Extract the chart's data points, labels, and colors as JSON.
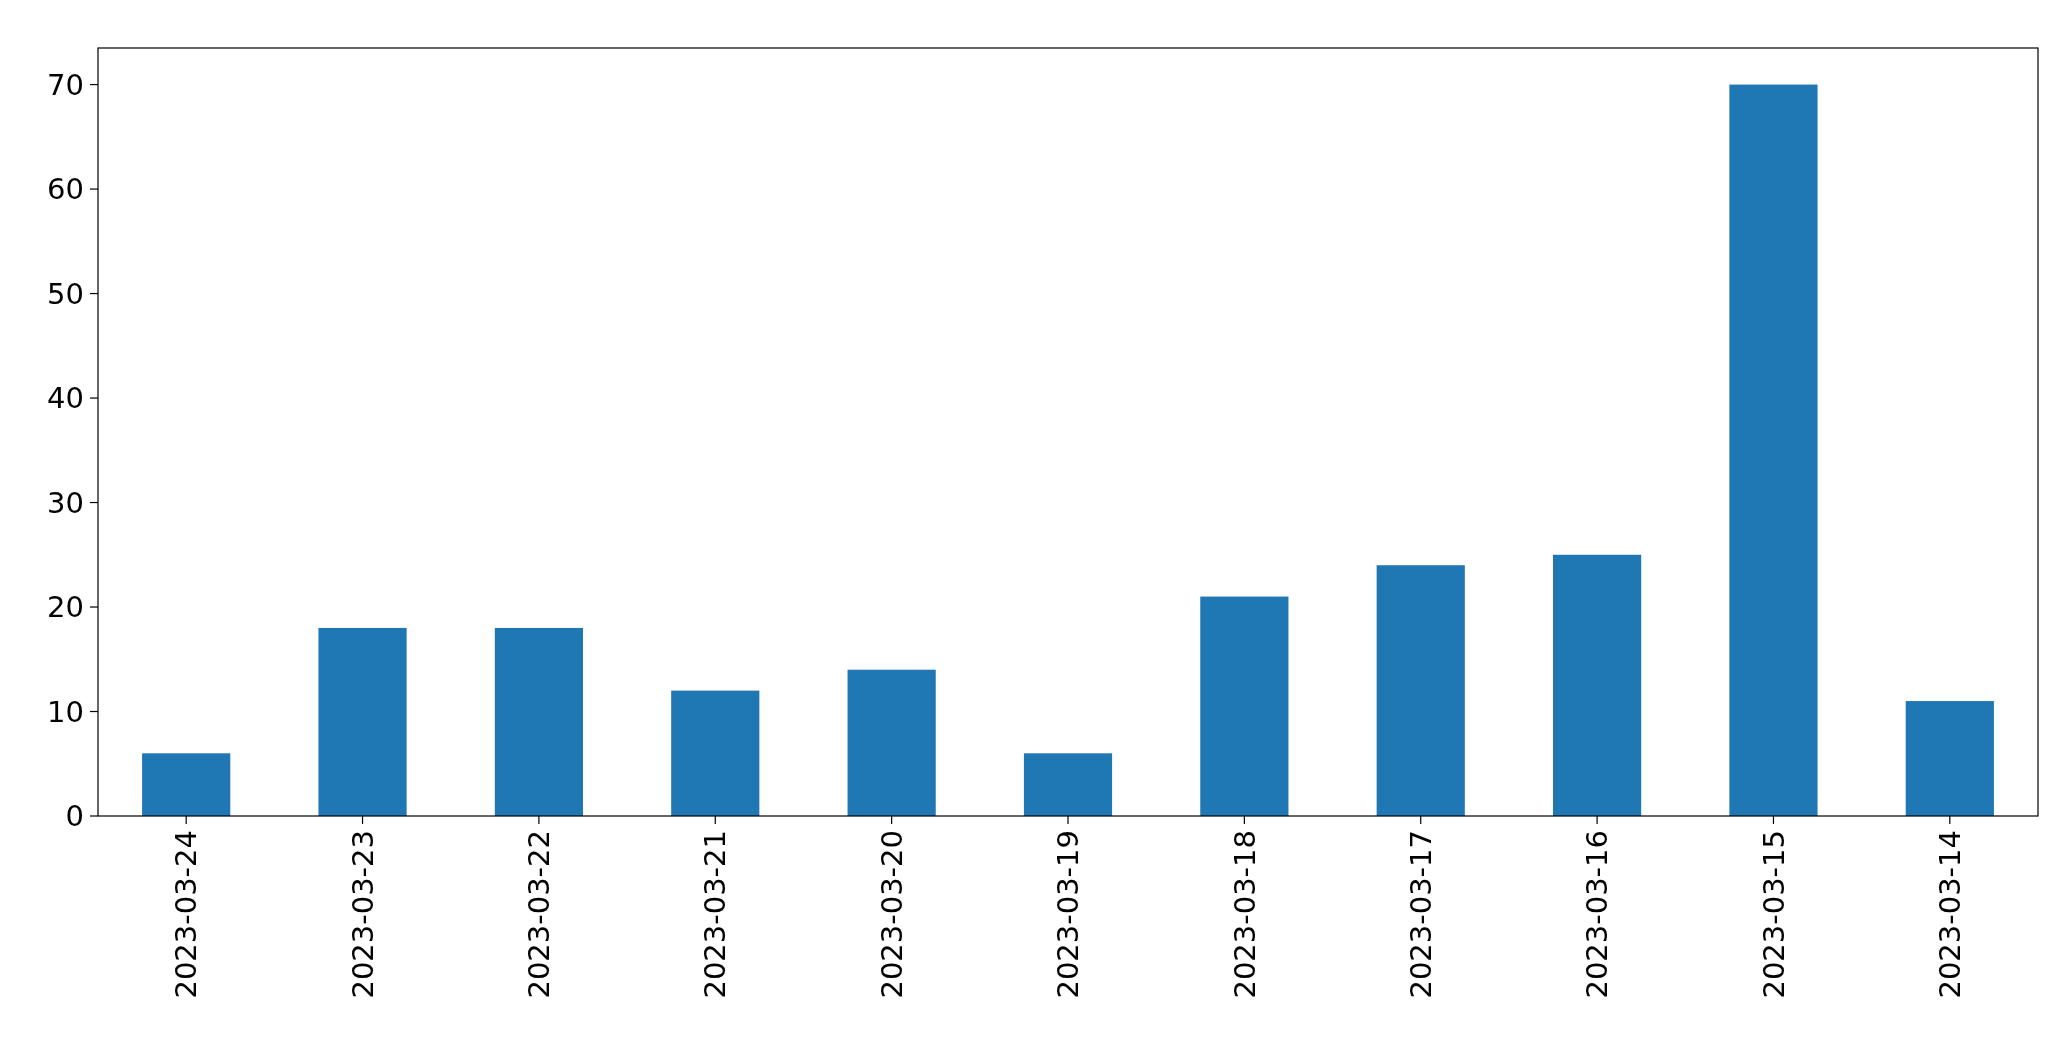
{
  "chart_data": {
    "type": "bar",
    "categories": [
      "2023-03-24",
      "2023-03-23",
      "2023-03-22",
      "2023-03-21",
      "2023-03-20",
      "2023-03-19",
      "2023-03-18",
      "2023-03-17",
      "2023-03-16",
      "2023-03-15",
      "2023-03-14"
    ],
    "values": [
      6,
      18,
      18,
      12,
      14,
      6,
      21,
      24,
      25,
      70,
      11
    ],
    "color": "#1f77b4",
    "ylim": [
      0,
      73.5
    ],
    "yticks": [
      0,
      10,
      20,
      30,
      40,
      50,
      60,
      70
    ]
  }
}
